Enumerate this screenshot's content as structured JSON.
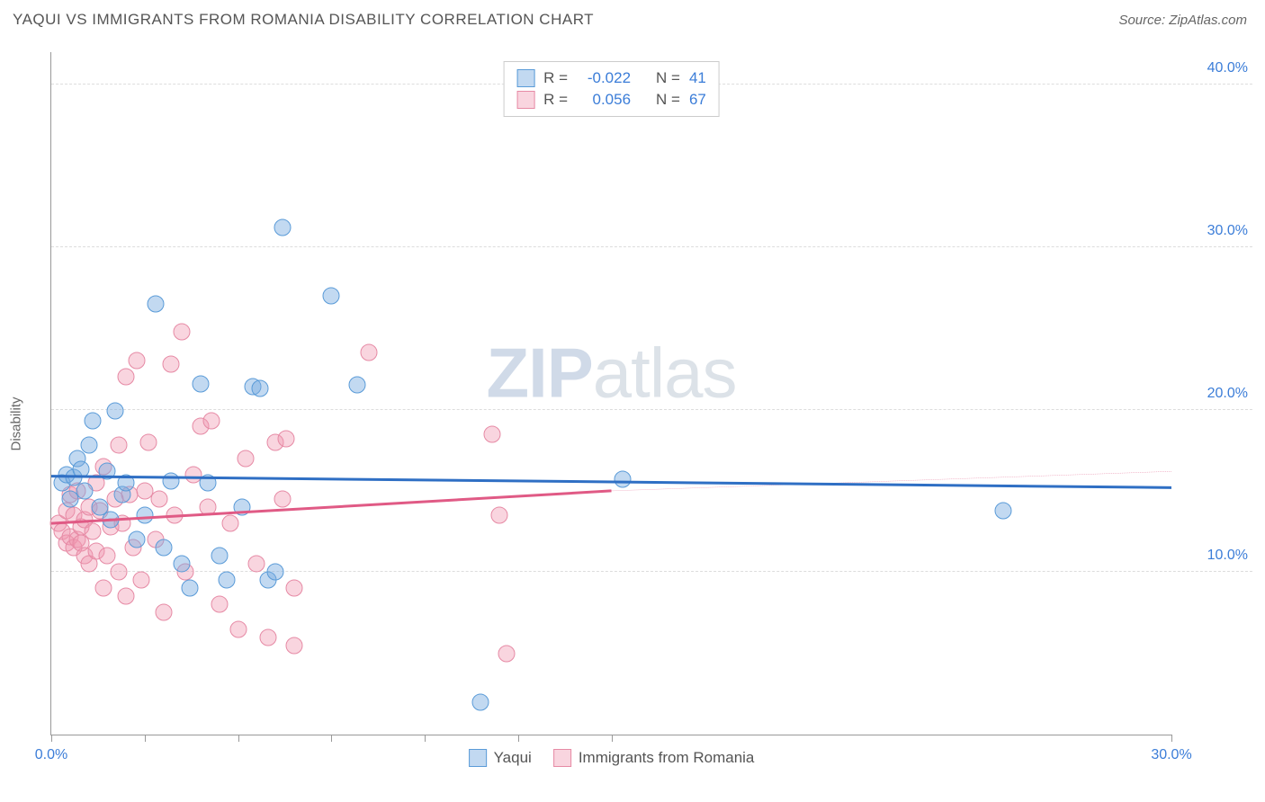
{
  "header": {
    "title": "YAQUI VS IMMIGRANTS FROM ROMANIA DISABILITY CORRELATION CHART",
    "source": "Source: ZipAtlas.com"
  },
  "chart": {
    "type": "scatter",
    "y_axis_label": "Disability",
    "watermark": {
      "zip": "ZIP",
      "atlas": "atlas"
    },
    "xlim": [
      0,
      30
    ],
    "ylim": [
      0,
      42
    ],
    "x_ticks": [
      0,
      2.5,
      5,
      7.5,
      10,
      12.5,
      15,
      30
    ],
    "x_tick_labels": {
      "0": "0.0%",
      "30": "30.0%"
    },
    "y_gridlines": [
      10,
      20,
      30,
      40
    ],
    "y_tick_labels": {
      "10": "10.0%",
      "20": "20.0%",
      "30": "30.0%",
      "40": "40.0%"
    },
    "colors": {
      "blue_fill": "rgba(120,170,225,0.45)",
      "blue_stroke": "#5a9bd8",
      "pink_fill": "rgba(240,150,175,0.40)",
      "pink_stroke": "#e68aa5",
      "blue_line": "#2f6fc4",
      "pink_line": "#e05a85",
      "axis_text": "#3b7dd8"
    },
    "legend_top": [
      {
        "swatch": "blue",
        "r_label": "R = ",
        "r_value": "-0.022",
        "n_label": "N = ",
        "n_value": "41"
      },
      {
        "swatch": "pink",
        "r_label": "R = ",
        "r_value": " 0.056",
        "n_label": "N = ",
        "n_value": "67"
      }
    ],
    "legend_bottom": [
      {
        "swatch": "blue",
        "label": "Yaqui"
      },
      {
        "swatch": "pink",
        "label": "Immigrants from Romania"
      }
    ],
    "trendlines": {
      "blue": {
        "y_start": 15.9,
        "y_end": 15.2
      },
      "pink_solid": {
        "x_start": 0,
        "y_start": 13.0,
        "x_end": 15,
        "y_end": 15.0
      },
      "pink_dash": {
        "x_start": 15,
        "y_start": 15.0,
        "x_end": 30,
        "y_end": 16.2
      }
    },
    "series": {
      "blue": [
        [
          0.3,
          15.5
        ],
        [
          0.4,
          16.0
        ],
        [
          0.5,
          14.5
        ],
        [
          0.6,
          15.8
        ],
        [
          0.7,
          17.0
        ],
        [
          0.8,
          16.3
        ],
        [
          0.9,
          15.0
        ],
        [
          1.0,
          17.8
        ],
        [
          1.1,
          19.3
        ],
        [
          1.3,
          14.0
        ],
        [
          1.5,
          16.2
        ],
        [
          1.6,
          13.2
        ],
        [
          1.7,
          19.9
        ],
        [
          1.9,
          14.8
        ],
        [
          2.0,
          15.5
        ],
        [
          2.3,
          12.0
        ],
        [
          2.5,
          13.5
        ],
        [
          2.8,
          26.5
        ],
        [
          3.0,
          11.5
        ],
        [
          3.2,
          15.6
        ],
        [
          3.5,
          10.5
        ],
        [
          3.7,
          9.0
        ],
        [
          4.0,
          21.6
        ],
        [
          4.2,
          15.5
        ],
        [
          4.5,
          11.0
        ],
        [
          4.7,
          9.5
        ],
        [
          5.1,
          14.0
        ],
        [
          5.4,
          21.4
        ],
        [
          5.6,
          21.3
        ],
        [
          5.8,
          9.5
        ],
        [
          6.0,
          10.0
        ],
        [
          6.2,
          31.2
        ],
        [
          7.5,
          27.0
        ],
        [
          8.2,
          21.5
        ],
        [
          11.5,
          2.0
        ],
        [
          15.3,
          15.7
        ],
        [
          25.5,
          13.8
        ]
      ],
      "pink": [
        [
          0.2,
          13.0
        ],
        [
          0.3,
          12.5
        ],
        [
          0.4,
          11.8
        ],
        [
          0.4,
          13.8
        ],
        [
          0.5,
          12.2
        ],
        [
          0.5,
          14.8
        ],
        [
          0.6,
          11.5
        ],
        [
          0.6,
          13.5
        ],
        [
          0.7,
          12.0
        ],
        [
          0.7,
          15.0
        ],
        [
          0.8,
          11.8
        ],
        [
          0.8,
          12.8
        ],
        [
          0.9,
          11.0
        ],
        [
          0.9,
          13.2
        ],
        [
          1.0,
          10.5
        ],
        [
          1.0,
          14.0
        ],
        [
          1.1,
          12.5
        ],
        [
          1.2,
          11.3
        ],
        [
          1.2,
          15.5
        ],
        [
          1.3,
          13.8
        ],
        [
          1.4,
          9.0
        ],
        [
          1.4,
          16.5
        ],
        [
          1.5,
          11.0
        ],
        [
          1.6,
          12.8
        ],
        [
          1.7,
          14.5
        ],
        [
          1.8,
          10.0
        ],
        [
          1.8,
          17.8
        ],
        [
          1.9,
          13.0
        ],
        [
          2.0,
          8.5
        ],
        [
          2.0,
          22.0
        ],
        [
          2.1,
          14.8
        ],
        [
          2.2,
          11.5
        ],
        [
          2.3,
          23.0
        ],
        [
          2.4,
          9.5
        ],
        [
          2.5,
          15.0
        ],
        [
          2.6,
          18.0
        ],
        [
          2.8,
          12.0
        ],
        [
          2.9,
          14.5
        ],
        [
          3.0,
          7.5
        ],
        [
          3.2,
          22.8
        ],
        [
          3.3,
          13.5
        ],
        [
          3.5,
          24.8
        ],
        [
          3.6,
          10.0
        ],
        [
          3.8,
          16.0
        ],
        [
          4.0,
          19.0
        ],
        [
          4.2,
          14.0
        ],
        [
          4.3,
          19.3
        ],
        [
          4.5,
          8.0
        ],
        [
          4.8,
          13.0
        ],
        [
          5.0,
          6.5
        ],
        [
          5.2,
          17.0
        ],
        [
          5.5,
          10.5
        ],
        [
          5.8,
          6.0
        ],
        [
          6.0,
          18.0
        ],
        [
          6.2,
          14.5
        ],
        [
          6.3,
          18.2
        ],
        [
          6.5,
          9.0
        ],
        [
          6.5,
          5.5
        ],
        [
          8.5,
          23.5
        ],
        [
          11.8,
          18.5
        ],
        [
          12.0,
          13.5
        ],
        [
          12.2,
          5.0
        ]
      ]
    }
  }
}
